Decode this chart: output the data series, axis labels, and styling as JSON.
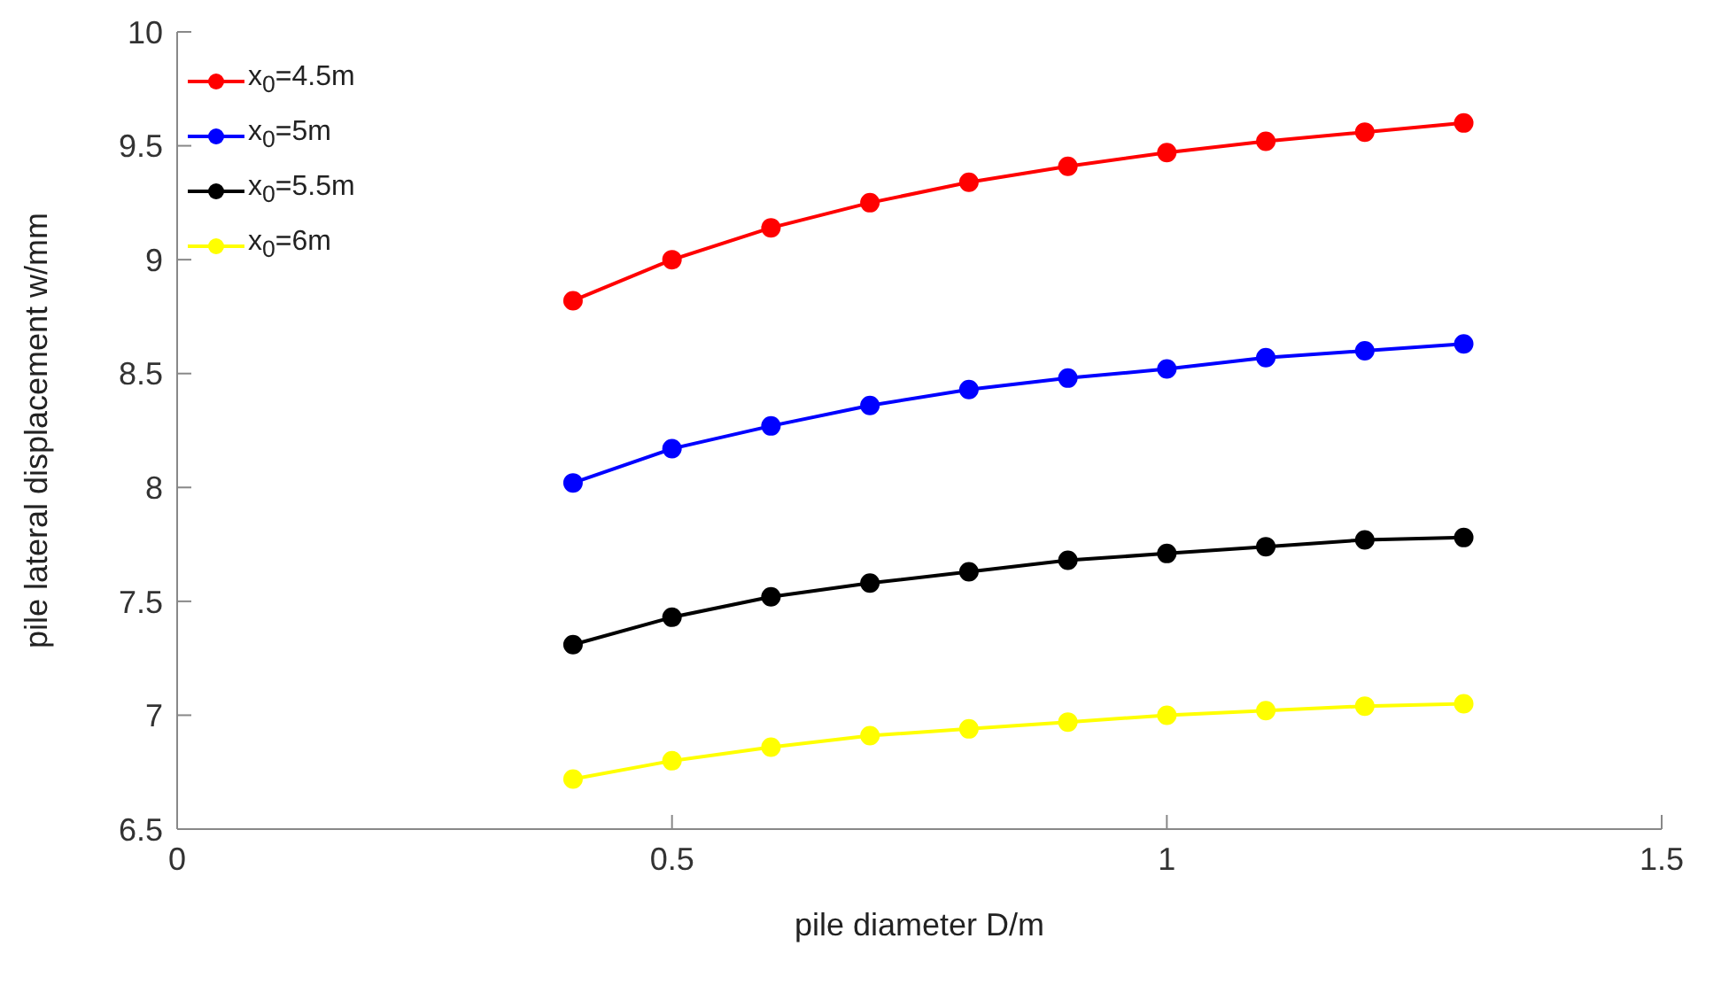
{
  "chart_data": {
    "type": "line",
    "xlabel": "pile diameter D/m",
    "ylabel": "pile lateral displacement w/mm",
    "x": [
      0.4,
      0.5,
      0.6,
      0.7,
      0.8,
      0.9,
      1.0,
      1.1,
      1.2,
      1.3
    ],
    "series": [
      {
        "name": "x$_{0}$=4.5m",
        "color": "#ff0000",
        "values": [
          8.82,
          9.0,
          9.14,
          9.25,
          9.34,
          9.41,
          9.47,
          9.52,
          9.56,
          9.6
        ]
      },
      {
        "name": "x$_{0}$=5m",
        "color": "#0000ff",
        "values": [
          8.02,
          8.17,
          8.27,
          8.36,
          8.43,
          8.48,
          8.52,
          8.57,
          8.6,
          8.63
        ]
      },
      {
        "name": "x$_{0}$=5.5m",
        "color": "#000000",
        "values": [
          7.31,
          7.43,
          7.52,
          7.58,
          7.63,
          7.68,
          7.71,
          7.74,
          7.77,
          7.78
        ]
      },
      {
        "name": "x$_{0}$=6m",
        "color": "#ffff00",
        "values": [
          6.72,
          6.8,
          6.86,
          6.91,
          6.94,
          6.97,
          7.0,
          7.02,
          7.04,
          7.05
        ]
      }
    ],
    "xlim": [
      0,
      1.5
    ],
    "xticks": [
      0,
      0.5,
      1,
      1.5
    ],
    "ylim": [
      6.5,
      10
    ],
    "yticks": [
      6.5,
      7,
      7.5,
      8,
      8.5,
      9,
      9.5,
      10
    ],
    "grid": false,
    "legend": "top left",
    "marker": "circle",
    "line_style": "solid"
  }
}
